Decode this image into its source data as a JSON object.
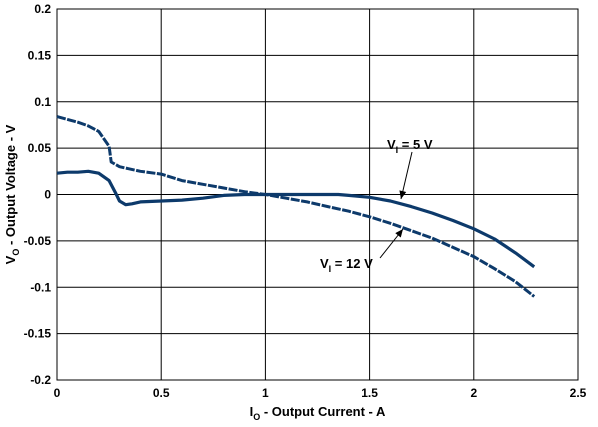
{
  "chart_data": {
    "type": "line",
    "xlabel": {
      "main": "I",
      "sub": "O",
      "rest": " - Output Current - A"
    },
    "ylabel": {
      "main": "V",
      "sub": "O",
      "rest": " - Output Voltage - V"
    },
    "xlim": [
      0,
      2.5
    ],
    "ylim": [
      -0.2,
      0.2
    ],
    "grid": true,
    "x_ticks": [
      0,
      0.5,
      1,
      1.5,
      2,
      2.5
    ],
    "x_tick_labels": [
      "0",
      "0.5",
      "1",
      "1.5",
      "2",
      "2.5"
    ],
    "y_ticks": [
      0.2,
      0.15,
      0.1,
      0.05,
      0,
      -0.05,
      -0.1,
      -0.15,
      -0.2
    ],
    "y_tick_labels": [
      "0.2",
      "0.15",
      "0.1",
      "0.05",
      "0",
      "-0.05",
      "-0.1",
      "-0.15",
      "-0.2"
    ],
    "series": [
      {
        "name": "V_I = 5 V",
        "color": "#0d3a6b",
        "x": [
          0,
          0.05,
          0.1,
          0.15,
          0.2,
          0.25,
          0.28,
          0.3,
          0.33,
          0.36,
          0.4,
          0.5,
          0.6,
          0.7,
          0.8,
          0.9,
          1.0,
          1.1,
          1.2,
          1.3,
          1.35,
          1.4,
          1.5,
          1.6,
          1.7,
          1.8,
          1.9,
          2.0,
          2.1,
          2.2,
          2.29
        ],
        "y": [
          0.023,
          0.024,
          0.024,
          0.025,
          0.023,
          0.015,
          0.002,
          -0.007,
          -0.011,
          -0.01,
          -0.008,
          -0.007,
          -0.006,
          -0.004,
          -0.001,
          0,
          0,
          0,
          0,
          0,
          0,
          -0.001,
          -0.003,
          -0.007,
          -0.013,
          -0.02,
          -0.028,
          -0.037,
          -0.048,
          -0.063,
          -0.078
        ]
      },
      {
        "name": "V_I = 12 V",
        "color": "#0d3a6b",
        "x": [
          0,
          0.05,
          0.1,
          0.15,
          0.2,
          0.25,
          0.26,
          0.3,
          0.4,
          0.5,
          0.6,
          0.7,
          0.8,
          0.9,
          1.0,
          1.1,
          1.2,
          1.3,
          1.4,
          1.5,
          1.6,
          1.7,
          1.8,
          1.9,
          2.0,
          2.1,
          2.2,
          2.29
        ],
        "y": [
          0.084,
          0.081,
          0.078,
          0.074,
          0.068,
          0.052,
          0.035,
          0.03,
          0.025,
          0.022,
          0.015,
          0.011,
          0.007,
          0.003,
          0.0,
          -0.004,
          -0.008,
          -0.013,
          -0.018,
          -0.024,
          -0.031,
          -0.039,
          -0.047,
          -0.057,
          -0.067,
          -0.08,
          -0.094,
          -0.11
        ]
      }
    ],
    "annotations": [
      {
        "main": "V",
        "sub": "I",
        "rest": " = 5 V",
        "series": 0
      },
      {
        "main": "V",
        "sub": "I",
        "rest": " = 12 V",
        "series": 1
      }
    ]
  }
}
